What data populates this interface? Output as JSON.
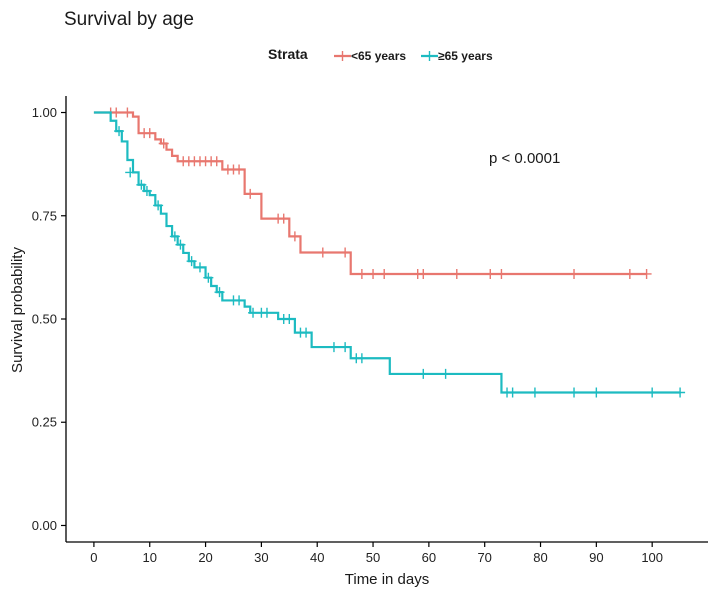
{
  "chart_data": {
    "type": "line",
    "subtype": "kaplan-meier step",
    "title": "Survival by age",
    "xlabel": "Time in days",
    "ylabel": "Survival probability",
    "xlim": [
      -5,
      110
    ],
    "ylim": [
      -0.04,
      1.04
    ],
    "xticks": [
      0,
      10,
      20,
      30,
      40,
      50,
      60,
      70,
      80,
      90,
      100
    ],
    "yticks": [
      0.0,
      0.25,
      0.5,
      0.75,
      1.0
    ],
    "ytick_labels": [
      "0.00",
      "0.25",
      "0.50",
      "0.75",
      "1.00"
    ],
    "grid": false,
    "legend": {
      "title": "Strata",
      "placement": "top",
      "entries": [
        "<65 years",
        "≥65 years"
      ]
    },
    "annotation": "p < 0.0001",
    "colors": {
      "<65 years": "#E8776F",
      "≥65 years": "#1DBBC1"
    },
    "series": [
      {
        "name": "<65 years",
        "color": "#E8776F",
        "steps": [
          [
            0,
            1.0
          ],
          [
            7,
            0.99
          ],
          [
            8,
            0.95
          ],
          [
            11,
            0.935
          ],
          [
            12,
            0.925
          ],
          [
            13,
            0.91
          ],
          [
            14,
            0.895
          ],
          [
            15,
            0.882
          ],
          [
            23,
            0.862
          ],
          [
            27,
            0.803
          ],
          [
            30,
            0.743
          ],
          [
            35,
            0.7
          ],
          [
            37,
            0.661
          ],
          [
            46,
            0.609
          ],
          [
            99,
            0.609
          ]
        ],
        "censor": [
          [
            3,
            1.0
          ],
          [
            4,
            1.0
          ],
          [
            6,
            1.0
          ],
          [
            9,
            0.95
          ],
          [
            10,
            0.95
          ],
          [
            12.5,
            0.925
          ],
          [
            16,
            0.882
          ],
          [
            17,
            0.882
          ],
          [
            18,
            0.882
          ],
          [
            19,
            0.882
          ],
          [
            20,
            0.882
          ],
          [
            21,
            0.882
          ],
          [
            22,
            0.882
          ],
          [
            24,
            0.862
          ],
          [
            25,
            0.862
          ],
          [
            26,
            0.862
          ],
          [
            28,
            0.803
          ],
          [
            33,
            0.743
          ],
          [
            34,
            0.743
          ],
          [
            36,
            0.7
          ],
          [
            41,
            0.661
          ],
          [
            45,
            0.661
          ],
          [
            48,
            0.609
          ],
          [
            50,
            0.609
          ],
          [
            52,
            0.609
          ],
          [
            58,
            0.609
          ],
          [
            59,
            0.609
          ],
          [
            65,
            0.609
          ],
          [
            71,
            0.609
          ],
          [
            73,
            0.609
          ],
          [
            86,
            0.609
          ],
          [
            96,
            0.609
          ],
          [
            99,
            0.609
          ]
        ]
      },
      {
        "name": "≥65 years",
        "color": "#1DBBC1",
        "steps": [
          [
            0,
            1.0
          ],
          [
            3,
            0.98
          ],
          [
            4,
            0.955
          ],
          [
            5,
            0.93
          ],
          [
            6,
            0.885
          ],
          [
            7,
            0.855
          ],
          [
            8,
            0.825
          ],
          [
            9,
            0.81
          ],
          [
            10,
            0.8
          ],
          [
            11,
            0.775
          ],
          [
            12,
            0.755
          ],
          [
            13,
            0.725
          ],
          [
            14,
            0.7
          ],
          [
            15,
            0.68
          ],
          [
            16,
            0.66
          ],
          [
            17,
            0.64
          ],
          [
            18,
            0.625
          ],
          [
            20,
            0.6
          ],
          [
            21,
            0.58
          ],
          [
            22,
            0.565
          ],
          [
            23,
            0.545
          ],
          [
            27,
            0.53
          ],
          [
            28,
            0.515
          ],
          [
            33,
            0.5
          ],
          [
            36,
            0.467
          ],
          [
            39,
            0.432
          ],
          [
            46,
            0.405
          ],
          [
            53,
            0.367
          ],
          [
            73,
            0.322
          ],
          [
            105,
            0.322
          ]
        ],
        "censor": [
          [
            4.5,
            0.955
          ],
          [
            6.5,
            0.855
          ],
          [
            8.5,
            0.825
          ],
          [
            9.5,
            0.81
          ],
          [
            11.5,
            0.775
          ],
          [
            14.5,
            0.7
          ],
          [
            15.5,
            0.68
          ],
          [
            17.5,
            0.64
          ],
          [
            19,
            0.625
          ],
          [
            20.5,
            0.6
          ],
          [
            22.5,
            0.565
          ],
          [
            25,
            0.545
          ],
          [
            26,
            0.545
          ],
          [
            28.5,
            0.515
          ],
          [
            30,
            0.515
          ],
          [
            31,
            0.515
          ],
          [
            34,
            0.5
          ],
          [
            35,
            0.5
          ],
          [
            37,
            0.467
          ],
          [
            38,
            0.467
          ],
          [
            43,
            0.432
          ],
          [
            45,
            0.432
          ],
          [
            47,
            0.405
          ],
          [
            48,
            0.405
          ],
          [
            59,
            0.367
          ],
          [
            63,
            0.367
          ],
          [
            74,
            0.322
          ],
          [
            75,
            0.322
          ],
          [
            79,
            0.322
          ],
          [
            86,
            0.322
          ],
          [
            90,
            0.322
          ],
          [
            100,
            0.322
          ],
          [
            105,
            0.322
          ]
        ]
      }
    ]
  }
}
